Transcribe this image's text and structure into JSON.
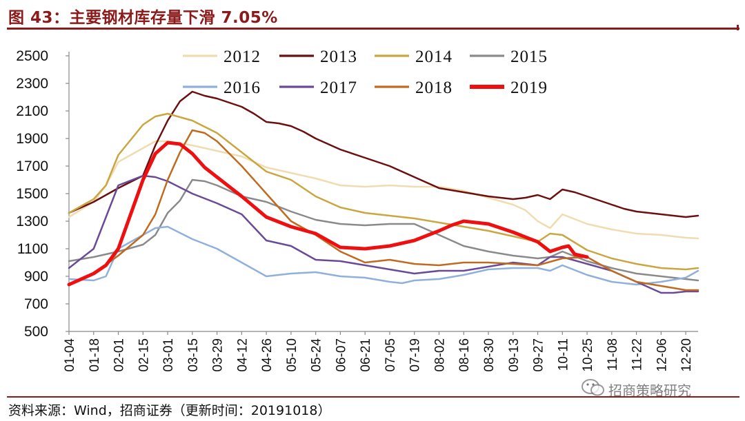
{
  "title": "图 43：主要钢材库存量下滑 7.05%",
  "footer": "资料来源：Wind，招商证券（更新时间：20191018）",
  "watermark": "招商策略研究",
  "chart_data": {
    "type": "line",
    "title": "主要钢材库存量下滑 7.05%",
    "xlabel": "",
    "ylabel": "",
    "ylim": [
      500,
      2500
    ],
    "yticks": [
      500,
      700,
      900,
      1100,
      1300,
      1500,
      1700,
      1900,
      2100,
      2300,
      2500
    ],
    "grid": false,
    "legend_position": "top",
    "x_tick_labels": [
      "01-04",
      "01-18",
      "02-01",
      "02-15",
      "03-01",
      "03-15",
      "03-29",
      "04-12",
      "04-26",
      "05-10",
      "05-24",
      "06-07",
      "06-21",
      "07-05",
      "07-19",
      "08-02",
      "08-16",
      "08-30",
      "09-13",
      "09-27",
      "10-11",
      "10-25",
      "11-08",
      "11-22",
      "12-06",
      "12-20"
    ],
    "x_tick_weeks": [
      0,
      2,
      4,
      6,
      8,
      10,
      12,
      14,
      16,
      18,
      20,
      22,
      24,
      26,
      28,
      30,
      32,
      34,
      36,
      38,
      40,
      42,
      44,
      46,
      48,
      50
    ],
    "x_range_weeks": [
      0,
      51
    ],
    "series": [
      {
        "name": "2012",
        "color": "#f0dcb0",
        "width": 2.5,
        "x": [
          0,
          2,
          3,
          4,
          6,
          7,
          8,
          10,
          12,
          14,
          16,
          18,
          20,
          22,
          24,
          26,
          28,
          30,
          32,
          34,
          36,
          37,
          38,
          39,
          40,
          42,
          44,
          46,
          48,
          50,
          51
        ],
        "y": [
          1330,
          1440,
          1560,
          1730,
          1830,
          1880,
          1880,
          1850,
          1810,
          1770,
          1690,
          1650,
          1610,
          1560,
          1550,
          1560,
          1550,
          1550,
          1520,
          1470,
          1420,
          1380,
          1300,
          1250,
          1350,
          1280,
          1240,
          1210,
          1200,
          1180,
          1175
        ]
      },
      {
        "name": "2013",
        "color": "#6b0f0f",
        "width": 2.5,
        "x": [
          0,
          2,
          4,
          6,
          7,
          8,
          9,
          10,
          11,
          12,
          13,
          14,
          15,
          16,
          17,
          18,
          19,
          20,
          22,
          24,
          26,
          28,
          30,
          32,
          34,
          36,
          37,
          38,
          39,
          40,
          41,
          42,
          44,
          45,
          46,
          48,
          49,
          50,
          51
        ],
        "y": [
          1360,
          1440,
          1540,
          1630,
          1850,
          2030,
          2170,
          2240,
          2210,
          2190,
          2160,
          2130,
          2080,
          2020,
          2010,
          1990,
          1950,
          1900,
          1820,
          1760,
          1700,
          1620,
          1540,
          1510,
          1480,
          1460,
          1470,
          1490,
          1460,
          1530,
          1510,
          1480,
          1420,
          1390,
          1370,
          1350,
          1340,
          1330,
          1340
        ]
      },
      {
        "name": "2014",
        "color": "#c9a640",
        "width": 2.5,
        "x": [
          0,
          2,
          3,
          4,
          6,
          7,
          8,
          10,
          12,
          14,
          16,
          18,
          20,
          22,
          24,
          26,
          28,
          30,
          32,
          34,
          36,
          37,
          38,
          39,
          40,
          42,
          44,
          46,
          48,
          50,
          51
        ],
        "y": [
          1360,
          1460,
          1560,
          1780,
          2000,
          2060,
          2080,
          2030,
          1940,
          1800,
          1660,
          1600,
          1480,
          1400,
          1360,
          1340,
          1320,
          1290,
          1260,
          1230,
          1190,
          1170,
          1150,
          1210,
          1200,
          1090,
          1030,
          990,
          960,
          950,
          960
        ]
      },
      {
        "name": "2015",
        "color": "#8a8a8a",
        "width": 2.5,
        "x": [
          0,
          2,
          4,
          6,
          7,
          8,
          9,
          10,
          11,
          12,
          14,
          16,
          18,
          20,
          22,
          24,
          26,
          28,
          30,
          32,
          34,
          36,
          38,
          39,
          40,
          42,
          44,
          46,
          48,
          50,
          51
        ],
        "y": [
          1010,
          1040,
          1080,
          1130,
          1200,
          1360,
          1450,
          1600,
          1590,
          1560,
          1480,
          1440,
          1370,
          1310,
          1280,
          1270,
          1280,
          1280,
          1200,
          1120,
          1080,
          1050,
          1030,
          1040,
          1080,
          1010,
          960,
          920,
          900,
          880,
          870
        ]
      },
      {
        "name": "2016",
        "color": "#8fb0dc",
        "width": 2.5,
        "x": [
          0,
          2,
          3,
          4,
          6,
          7,
          8,
          10,
          12,
          14,
          16,
          17,
          18,
          20,
          22,
          24,
          26,
          27,
          28,
          30,
          32,
          34,
          36,
          38,
          39,
          40,
          42,
          44,
          46,
          48,
          50,
          51
        ],
        "y": [
          880,
          870,
          900,
          1100,
          1200,
          1250,
          1260,
          1170,
          1100,
          1000,
          900,
          910,
          920,
          930,
          900,
          890,
          860,
          850,
          870,
          880,
          910,
          950,
          960,
          960,
          940,
          980,
          910,
          860,
          840,
          860,
          890,
          940
        ]
      },
      {
        "name": "2017",
        "color": "#6a4a96",
        "width": 2.5,
        "x": [
          0,
          2,
          4,
          6,
          7,
          8,
          10,
          12,
          14,
          16,
          18,
          20,
          22,
          24,
          26,
          28,
          30,
          32,
          34,
          36,
          38,
          39,
          40,
          42,
          44,
          46,
          47,
          48,
          49,
          50,
          51
        ],
        "y": [
          960,
          1100,
          1560,
          1630,
          1620,
          1590,
          1500,
          1430,
          1350,
          1160,
          1120,
          1020,
          1010,
          980,
          950,
          920,
          940,
          940,
          970,
          1000,
          980,
          1040,
          1040,
          990,
          940,
          860,
          820,
          780,
          780,
          790,
          790
        ]
      },
      {
        "name": "2018",
        "color": "#c06a1f",
        "width": 2.5,
        "x": [
          0,
          2,
          4,
          6,
          7,
          8,
          9,
          10,
          11,
          12,
          14,
          16,
          18,
          20,
          22,
          24,
          26,
          28,
          30,
          32,
          34,
          36,
          38,
          40,
          42,
          44,
          46,
          48,
          50,
          51
        ],
        "y": [
          840,
          920,
          1050,
          1200,
          1350,
          1600,
          1800,
          1960,
          1940,
          1880,
          1700,
          1500,
          1300,
          1200,
          1080,
          1000,
          1020,
          990,
          980,
          1000,
          1000,
          990,
          980,
          1030,
          1040,
          940,
          860,
          830,
          800,
          800
        ]
      },
      {
        "name": "2019",
        "color": "#ee1010",
        "width": 5,
        "x": [
          0,
          2,
          3,
          4,
          5,
          6,
          7,
          8,
          9,
          10,
          11,
          12,
          14,
          16,
          18,
          20,
          22,
          24,
          26,
          27,
          28,
          30,
          31,
          32,
          34,
          36,
          38,
          39,
          40,
          40.5,
          41,
          42
        ],
        "y": [
          840,
          920,
          980,
          1100,
          1350,
          1600,
          1790,
          1870,
          1860,
          1790,
          1690,
          1620,
          1480,
          1330,
          1260,
          1210,
          1110,
          1100,
          1120,
          1140,
          1160,
          1230,
          1270,
          1300,
          1280,
          1220,
          1150,
          1080,
          1110,
          1120,
          1060,
          1040
        ]
      }
    ]
  }
}
